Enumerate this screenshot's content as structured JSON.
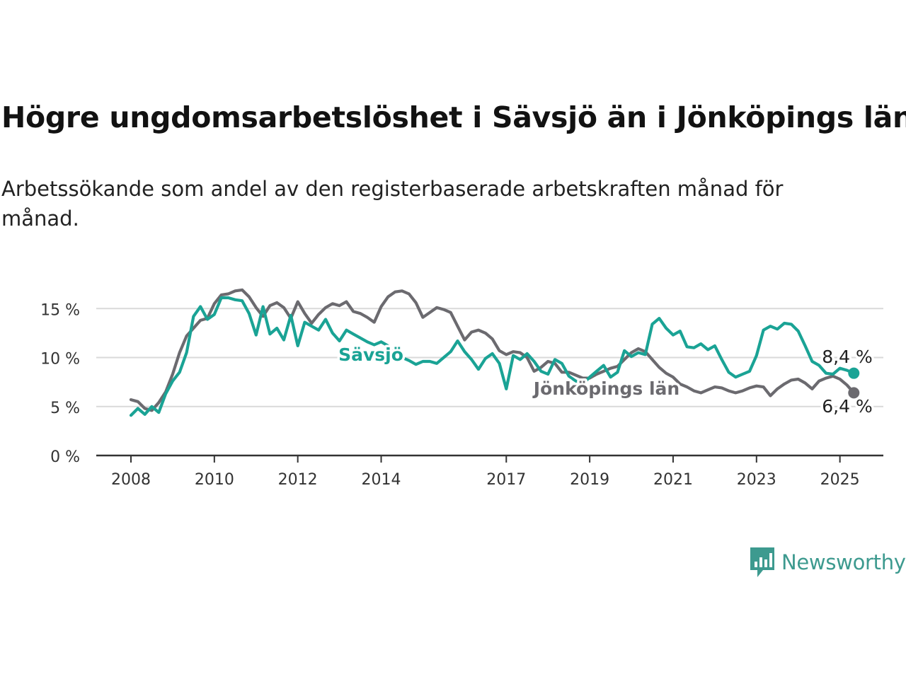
{
  "title": "Högre ungdomsarbetslöshet i Sävsjö än i Jönköpings län",
  "subtitle": "Arbetssökande som andel av den registerbaserade arbetskraften månad för månad.",
  "brand": {
    "name": "Newsworthy",
    "color": "#3d9a8f"
  },
  "chart_data": {
    "type": "line",
    "x_unit": "month",
    "ylim": [
      0,
      18
    ],
    "y_ticks": [
      0,
      5,
      10,
      15
    ],
    "y_tick_labels": [
      "0 %",
      "5 %",
      "10 %",
      "15 %"
    ],
    "x_ticks": [
      2008,
      2010,
      2012,
      2014,
      2017,
      2019,
      2021,
      2023,
      2025
    ],
    "x_tick_labels": [
      "2008",
      "2010",
      "2012",
      "2014",
      "2017",
      "2019",
      "2021",
      "2023",
      "2025"
    ],
    "grid": true,
    "legend": "inline labels",
    "series": [
      {
        "name": "Jönköpings län",
        "color": "#6b6a6f",
        "end_label": "6,4 %",
        "anchors": [
          [
            "2008-01",
            5.7
          ],
          [
            "2008-03",
            5.5
          ],
          [
            "2008-05",
            4.8
          ],
          [
            "2008-07",
            4.6
          ],
          [
            "2008-09",
            5.4
          ],
          [
            "2008-11",
            6.5
          ],
          [
            "2009-01",
            8.3
          ],
          [
            "2009-03",
            10.5
          ],
          [
            "2009-05",
            12.2
          ],
          [
            "2009-07",
            13.0
          ],
          [
            "2009-09",
            13.8
          ],
          [
            "2009-11",
            14.0
          ],
          [
            "2010-01",
            15.5
          ],
          [
            "2010-03",
            16.4
          ],
          [
            "2010-05",
            16.5
          ],
          [
            "2010-07",
            16.8
          ],
          [
            "2010-09",
            16.9
          ],
          [
            "2010-11",
            16.2
          ],
          [
            "2011-01",
            15.1
          ],
          [
            "2011-03",
            14.2
          ],
          [
            "2011-05",
            15.3
          ],
          [
            "2011-07",
            15.6
          ],
          [
            "2011-09",
            15.1
          ],
          [
            "2011-11",
            14.0
          ],
          [
            "2012-01",
            15.7
          ],
          [
            "2012-03",
            14.5
          ],
          [
            "2012-05",
            13.5
          ],
          [
            "2012-07",
            14.4
          ],
          [
            "2012-09",
            15.1
          ],
          [
            "2012-11",
            15.5
          ],
          [
            "2013-01",
            15.3
          ],
          [
            "2013-03",
            15.7
          ],
          [
            "2013-05",
            14.7
          ],
          [
            "2013-07",
            14.5
          ],
          [
            "2013-09",
            14.1
          ],
          [
            "2013-11",
            13.6
          ],
          [
            "2014-01",
            15.2
          ],
          [
            "2014-03",
            16.2
          ],
          [
            "2014-05",
            16.7
          ],
          [
            "2014-07",
            16.8
          ],
          [
            "2014-09",
            16.5
          ],
          [
            "2014-11",
            15.6
          ],
          [
            "2015-01",
            14.1
          ],
          [
            "2015-03",
            14.6
          ],
          [
            "2015-05",
            15.1
          ],
          [
            "2015-07",
            14.9
          ],
          [
            "2015-09",
            14.6
          ],
          [
            "2015-11",
            13.2
          ],
          [
            "2016-01",
            11.8
          ],
          [
            "2016-03",
            12.6
          ],
          [
            "2016-05",
            12.8
          ],
          [
            "2016-07",
            12.5
          ],
          [
            "2016-09",
            11.9
          ],
          [
            "2016-11",
            10.7
          ],
          [
            "2017-01",
            10.3
          ],
          [
            "2017-03",
            10.6
          ],
          [
            "2017-05",
            10.5
          ],
          [
            "2017-07",
            10.0
          ],
          [
            "2017-09",
            8.6
          ],
          [
            "2017-11",
            9.0
          ],
          [
            "2018-01",
            9.6
          ],
          [
            "2018-03",
            9.4
          ],
          [
            "2018-05",
            8.5
          ],
          [
            "2018-07",
            8.5
          ],
          [
            "2018-09",
            8.2
          ],
          [
            "2018-11",
            7.9
          ],
          [
            "2019-01",
            7.9
          ],
          [
            "2019-03",
            8.3
          ],
          [
            "2019-05",
            8.6
          ],
          [
            "2019-07",
            8.9
          ],
          [
            "2019-09",
            9.1
          ],
          [
            "2019-11",
            9.8
          ],
          [
            "2020-01",
            10.5
          ],
          [
            "2020-03",
            10.9
          ],
          [
            "2020-05",
            10.6
          ],
          [
            "2020-07",
            9.8
          ],
          [
            "2020-09",
            9.0
          ],
          [
            "2020-11",
            8.4
          ],
          [
            "2021-01",
            8.0
          ],
          [
            "2021-03",
            7.3
          ],
          [
            "2021-05",
            7.0
          ],
          [
            "2021-07",
            6.6
          ],
          [
            "2021-09",
            6.4
          ],
          [
            "2021-11",
            6.7
          ],
          [
            "2022-01",
            7.0
          ],
          [
            "2022-03",
            6.9
          ],
          [
            "2022-05",
            6.6
          ],
          [
            "2022-07",
            6.4
          ],
          [
            "2022-09",
            6.6
          ],
          [
            "2022-11",
            6.9
          ],
          [
            "2023-01",
            7.1
          ],
          [
            "2023-03",
            7.0
          ],
          [
            "2023-05",
            6.1
          ],
          [
            "2023-07",
            6.8
          ],
          [
            "2023-09",
            7.3
          ],
          [
            "2023-11",
            7.7
          ],
          [
            "2024-01",
            7.8
          ],
          [
            "2024-03",
            7.4
          ],
          [
            "2024-05",
            6.8
          ],
          [
            "2024-07",
            7.6
          ],
          [
            "2024-09",
            7.9
          ],
          [
            "2024-11",
            8.1
          ],
          [
            "2025-01",
            7.8
          ],
          [
            "2025-03",
            7.2
          ],
          [
            "2025-05",
            6.4
          ]
        ]
      },
      {
        "name": "Sävsjö",
        "color": "#1aa395",
        "end_label": "8,4 %",
        "anchors": [
          [
            "2008-01",
            4.1
          ],
          [
            "2008-03",
            4.8
          ],
          [
            "2008-05",
            4.2
          ],
          [
            "2008-07",
            5.0
          ],
          [
            "2008-09",
            4.4
          ],
          [
            "2008-11",
            6.3
          ],
          [
            "2009-01",
            7.6
          ],
          [
            "2009-03",
            8.5
          ],
          [
            "2009-05",
            10.5
          ],
          [
            "2009-07",
            14.2
          ],
          [
            "2009-09",
            15.2
          ],
          [
            "2009-11",
            13.9
          ],
          [
            "2010-01",
            14.4
          ],
          [
            "2010-03",
            16.1
          ],
          [
            "2010-05",
            16.1
          ],
          [
            "2010-07",
            15.9
          ],
          [
            "2010-09",
            15.8
          ],
          [
            "2010-11",
            14.5
          ],
          [
            "2011-01",
            12.3
          ],
          [
            "2011-03",
            15.2
          ],
          [
            "2011-05",
            12.4
          ],
          [
            "2011-07",
            13.0
          ],
          [
            "2011-09",
            11.8
          ],
          [
            "2011-11",
            14.3
          ],
          [
            "2012-01",
            11.2
          ],
          [
            "2012-03",
            13.6
          ],
          [
            "2012-05",
            13.2
          ],
          [
            "2012-07",
            12.8
          ],
          [
            "2012-09",
            13.9
          ],
          [
            "2012-11",
            12.5
          ],
          [
            "2013-01",
            11.7
          ],
          [
            "2013-03",
            12.8
          ],
          [
            "2013-05",
            12.4
          ],
          [
            "2013-07",
            12.0
          ],
          [
            "2013-09",
            11.6
          ],
          [
            "2013-11",
            11.3
          ],
          [
            "2014-01",
            11.6
          ],
          [
            "2014-03",
            11.2
          ],
          [
            "2014-05",
            10.6
          ],
          [
            "2014-07",
            10.0
          ],
          [
            "2014-09",
            9.7
          ],
          [
            "2014-11",
            9.3
          ],
          [
            "2015-01",
            9.6
          ],
          [
            "2015-03",
            9.6
          ],
          [
            "2015-05",
            9.4
          ],
          [
            "2015-07",
            10.0
          ],
          [
            "2015-09",
            10.6
          ],
          [
            "2015-11",
            11.7
          ],
          [
            "2016-01",
            10.6
          ],
          [
            "2016-03",
            9.8
          ],
          [
            "2016-05",
            8.8
          ],
          [
            "2016-07",
            9.9
          ],
          [
            "2016-09",
            10.4
          ],
          [
            "2016-11",
            9.4
          ],
          [
            "2017-01",
            6.8
          ],
          [
            "2017-03",
            10.2
          ],
          [
            "2017-05",
            9.8
          ],
          [
            "2017-07",
            10.4
          ],
          [
            "2017-09",
            9.6
          ],
          [
            "2017-11",
            8.6
          ],
          [
            "2018-01",
            8.3
          ],
          [
            "2018-03",
            9.8
          ],
          [
            "2018-05",
            9.4
          ],
          [
            "2018-07",
            8.1
          ],
          [
            "2018-09",
            7.6
          ],
          [
            "2018-11",
            7.3
          ],
          [
            "2019-01",
            8.0
          ],
          [
            "2019-03",
            8.6
          ],
          [
            "2019-05",
            9.2
          ],
          [
            "2019-07",
            8.0
          ],
          [
            "2019-09",
            8.5
          ],
          [
            "2019-11",
            10.7
          ],
          [
            "2020-01",
            10.1
          ],
          [
            "2020-03",
            10.5
          ],
          [
            "2020-05",
            10.3
          ],
          [
            "2020-07",
            13.4
          ],
          [
            "2020-09",
            14.0
          ],
          [
            "2020-11",
            13.0
          ],
          [
            "2021-01",
            12.3
          ],
          [
            "2021-03",
            12.7
          ],
          [
            "2021-05",
            11.1
          ],
          [
            "2021-07",
            11.0
          ],
          [
            "2021-09",
            11.4
          ],
          [
            "2021-11",
            10.8
          ],
          [
            "2022-01",
            11.2
          ],
          [
            "2022-03",
            9.8
          ],
          [
            "2022-05",
            8.5
          ],
          [
            "2022-07",
            8.0
          ],
          [
            "2022-09",
            8.3
          ],
          [
            "2022-11",
            8.6
          ],
          [
            "2023-01",
            10.2
          ],
          [
            "2023-03",
            12.8
          ],
          [
            "2023-05",
            13.2
          ],
          [
            "2023-07",
            12.9
          ],
          [
            "2023-09",
            13.5
          ],
          [
            "2023-11",
            13.4
          ],
          [
            "2024-01",
            12.7
          ],
          [
            "2024-03",
            11.2
          ],
          [
            "2024-05",
            9.6
          ],
          [
            "2024-07",
            9.2
          ],
          [
            "2024-09",
            8.4
          ],
          [
            "2024-11",
            8.3
          ],
          [
            "2025-01",
            8.9
          ],
          [
            "2025-03",
            8.7
          ],
          [
            "2025-05",
            8.4
          ]
        ]
      }
    ]
  }
}
